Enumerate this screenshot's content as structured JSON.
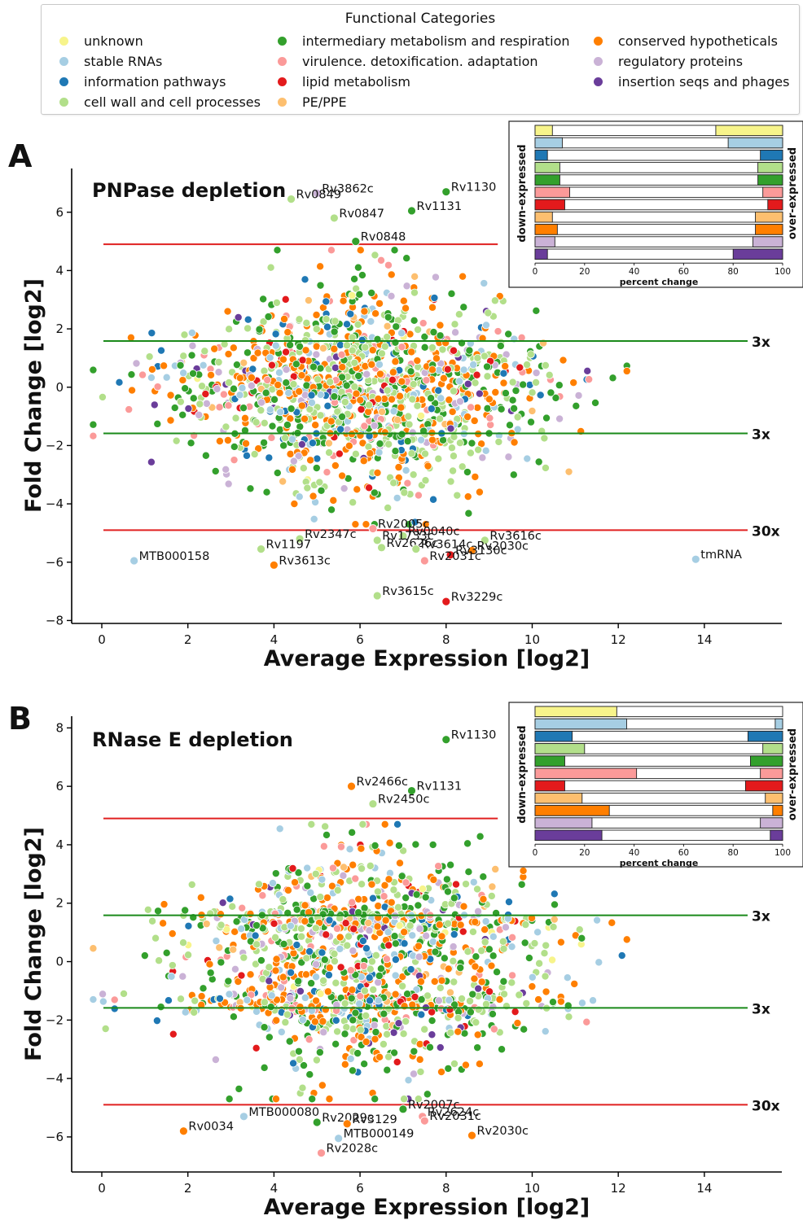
{
  "legend": {
    "title": "Functional Categories",
    "columns": [
      [
        {
          "key": "unknown",
          "label": "unknown",
          "color": "#f7f48b"
        },
        {
          "key": "stable",
          "label": "stable RNAs",
          "color": "#a6cee3"
        },
        {
          "key": "info",
          "label": "information pathways",
          "color": "#1f78b4"
        },
        {
          "key": "cellwall",
          "label": "cell wall and cell processes",
          "color": "#b2df8a"
        }
      ],
      [
        {
          "key": "intermed",
          "label": "intermediary metabolism and respiration",
          "color": "#33a02c"
        },
        {
          "key": "virulence",
          "label": "virulence. detoxification. adaptation",
          "color": "#fb9a99"
        },
        {
          "key": "lipid",
          "label": "lipid metabolism",
          "color": "#e31a1c"
        },
        {
          "key": "pe",
          "label": "PE/PPE",
          "color": "#fdbf6f"
        }
      ],
      [
        {
          "key": "conserved",
          "label": "conserved hypotheticals",
          "color": "#ff7f00"
        },
        {
          "key": "regulatory",
          "label": "regulatory proteins",
          "color": "#cab2d6"
        },
        {
          "key": "insertion",
          "label": "insertion seqs and phages",
          "color": "#6a3d9a"
        }
      ]
    ]
  },
  "colors": {
    "threshold_3x": "#1a8a1a",
    "threshold_30x": "#e02020",
    "inset_bar_center": "#ffffff"
  },
  "chart_data": [
    {
      "type": "scatter",
      "panel_letter": "A",
      "title": "PNPase depletion",
      "xlabel": "Average Expression [log2]",
      "ylabel": "Fold Change [log2]",
      "xlim": [
        -0.7,
        15.8
      ],
      "ylim": [
        -8.1,
        7.5
      ],
      "xticks": [
        0,
        2,
        4,
        6,
        8,
        10,
        12,
        14
      ],
      "yticks": [
        -8,
        -6,
        -4,
        -2,
        0,
        2,
        4,
        6
      ],
      "thresholds": [
        {
          "y": 4.9,
          "label": "",
          "kind": "30x",
          "xmax": 9.2
        },
        {
          "y": 1.585,
          "label": "3x",
          "kind": "3x"
        },
        {
          "y": -1.585,
          "label": "3x",
          "kind": "3x"
        },
        {
          "y": -4.9,
          "label": "30x",
          "kind": "30x"
        }
      ],
      "bulk_summary": {
        "x_center": 6.0,
        "x_spread": 2.2,
        "y_spread": 1.8,
        "count_approx": 1300,
        "seed": 11
      },
      "labeled_points": [
        {
          "label": "Rv3862c",
          "x": 5.0,
          "y": 6.65,
          "cat": "regulatory"
        },
        {
          "label": "Rv0849",
          "x": 4.4,
          "y": 6.45,
          "cat": "cellwall"
        },
        {
          "label": "Rv1130",
          "x": 8.0,
          "y": 6.7,
          "cat": "intermed"
        },
        {
          "label": "Rv1131",
          "x": 7.2,
          "y": 6.05,
          "cat": "intermed"
        },
        {
          "label": "Rv0847",
          "x": 5.4,
          "y": 5.8,
          "cat": "cellwall"
        },
        {
          "label": "Rv0848",
          "x": 5.9,
          "y": 5.0,
          "cat": "intermed"
        },
        {
          "label": "Rv2005c",
          "x": 6.3,
          "y": -4.85,
          "cat": "virulence"
        },
        {
          "label": "Rv0040c",
          "x": 7.0,
          "y": -5.1,
          "cat": "cellwall"
        },
        {
          "label": "Rv2347c",
          "x": 4.6,
          "y": -5.2,
          "cat": "cellwall"
        },
        {
          "label": "Rv1733c",
          "x": 6.4,
          "y": -5.25,
          "cat": "cellwall"
        },
        {
          "label": "Rv3616c",
          "x": 8.9,
          "y": -5.25,
          "cat": "cellwall"
        },
        {
          "label": "Rv1197",
          "x": 3.7,
          "y": -5.55,
          "cat": "cellwall"
        },
        {
          "label": "Rv2626c",
          "x": 6.5,
          "y": -5.5,
          "cat": "cellwall"
        },
        {
          "label": "Rv3614c",
          "x": 7.3,
          "y": -5.55,
          "cat": "cellwall"
        },
        {
          "label": "Rv2030c",
          "x": 8.6,
          "y": -5.6,
          "cat": "conserved"
        },
        {
          "label": "Rv3130c",
          "x": 8.1,
          "y": -5.75,
          "cat": "lipid"
        },
        {
          "label": "MTB000158",
          "x": 0.75,
          "y": -5.95,
          "cat": "stable"
        },
        {
          "label": "Rv3613c",
          "x": 4.0,
          "y": -6.1,
          "cat": "conserved"
        },
        {
          "label": "Rv2031c",
          "x": 7.5,
          "y": -5.95,
          "cat": "virulence"
        },
        {
          "label": "tmRNA",
          "x": 13.8,
          "y": -5.9,
          "cat": "stable"
        },
        {
          "label": "Rv3615c",
          "x": 6.4,
          "y": -7.15,
          "cat": "cellwall"
        },
        {
          "label": "Rv3229c",
          "x": 8.0,
          "y": -7.35,
          "cat": "lipid"
        }
      ],
      "inset": {
        "left_label": "down-expressed",
        "right_label": "over-expressed",
        "xlabel": "percent change",
        "xticks": [
          0,
          20,
          40,
          60,
          80,
          100
        ],
        "rows": [
          {
            "cat": "unknown",
            "down": 7,
            "over": 27
          },
          {
            "cat": "stable",
            "down": 11,
            "over": 22
          },
          {
            "cat": "info",
            "down": 5,
            "over": 9
          },
          {
            "cat": "cellwall",
            "down": 10,
            "over": 10
          },
          {
            "cat": "intermed",
            "down": 10,
            "over": 10
          },
          {
            "cat": "virulence",
            "down": 14,
            "over": 8
          },
          {
            "cat": "lipid",
            "down": 12,
            "over": 6
          },
          {
            "cat": "pe",
            "down": 7,
            "over": 11
          },
          {
            "cat": "conserved",
            "down": 9,
            "over": 11
          },
          {
            "cat": "regulatory",
            "down": 8,
            "over": 12
          },
          {
            "cat": "insertion",
            "down": 5,
            "over": 20
          }
        ]
      }
    },
    {
      "type": "scatter",
      "panel_letter": "B",
      "title": "RNase E depletion",
      "xlabel": "Average Expression [log2]",
      "ylabel": "Fold Change [log2]",
      "xlim": [
        -0.7,
        15.8
      ],
      "ylim": [
        -7.2,
        8.4
      ],
      "xticks": [
        0,
        2,
        4,
        6,
        8,
        10,
        12,
        14
      ],
      "yticks": [
        -6,
        -4,
        -2,
        0,
        2,
        4,
        6,
        8
      ],
      "thresholds": [
        {
          "y": 4.9,
          "label": "",
          "kind": "30x",
          "xmax": 9.2
        },
        {
          "y": 1.585,
          "label": "3x",
          "kind": "3x"
        },
        {
          "y": -1.585,
          "label": "3x",
          "kind": "3x"
        },
        {
          "y": -4.9,
          "label": "30x",
          "kind": "30x"
        }
      ],
      "bulk_summary": {
        "x_center": 6.0,
        "x_spread": 2.2,
        "y_spread": 1.9,
        "count_approx": 1300,
        "seed": 29
      },
      "labeled_points": [
        {
          "label": "Rv1130",
          "x": 8.0,
          "y": 7.6,
          "cat": "intermed"
        },
        {
          "label": "Rv2466c",
          "x": 5.8,
          "y": 6.0,
          "cat": "conserved"
        },
        {
          "label": "Rv1131",
          "x": 7.2,
          "y": 5.85,
          "cat": "intermed"
        },
        {
          "label": "Rv2450c",
          "x": 6.3,
          "y": 5.4,
          "cat": "cellwall"
        },
        {
          "label": "Rv2007c",
          "x": 7.0,
          "y": -5.05,
          "cat": "intermed"
        },
        {
          "label": "MTB000080",
          "x": 3.3,
          "y": -5.3,
          "cat": "stable"
        },
        {
          "label": "Rv2624c",
          "x": 7.45,
          "y": -5.3,
          "cat": "virulence"
        },
        {
          "label": "Rv2029c",
          "x": 5.0,
          "y": -5.5,
          "cat": "intermed"
        },
        {
          "label": "Rv2031c",
          "x": 7.5,
          "y": -5.45,
          "cat": "virulence"
        },
        {
          "label": "Rv3129",
          "x": 5.7,
          "y": -5.55,
          "cat": "conserved"
        },
        {
          "label": "Rv0034",
          "x": 1.9,
          "y": -5.8,
          "cat": "conserved"
        },
        {
          "label": "Rv2030c",
          "x": 8.6,
          "y": -5.95,
          "cat": "conserved"
        },
        {
          "label": "MTB000149",
          "x": 5.5,
          "y": -6.05,
          "cat": "stable"
        },
        {
          "label": "Rv2028c",
          "x": 5.1,
          "y": -6.55,
          "cat": "virulence"
        }
      ],
      "inset": {
        "left_label": "down-expressed",
        "right_label": "over-expressed",
        "xlabel": "percent change",
        "xticks": [
          0,
          20,
          40,
          60,
          80,
          100
        ],
        "rows": [
          {
            "cat": "unknown",
            "down": 33,
            "over": 0
          },
          {
            "cat": "stable",
            "down": 37,
            "over": 3
          },
          {
            "cat": "info",
            "down": 15,
            "over": 14
          },
          {
            "cat": "cellwall",
            "down": 20,
            "over": 8
          },
          {
            "cat": "intermed",
            "down": 12,
            "over": 13
          },
          {
            "cat": "virulence",
            "down": 41,
            "over": 9
          },
          {
            "cat": "lipid",
            "down": 12,
            "over": 15
          },
          {
            "cat": "pe",
            "down": 19,
            "over": 7
          },
          {
            "cat": "conserved",
            "down": 30,
            "over": 4
          },
          {
            "cat": "regulatory",
            "down": 23,
            "over": 9
          },
          {
            "cat": "insertion",
            "down": 27,
            "over": 5
          }
        ]
      }
    }
  ]
}
